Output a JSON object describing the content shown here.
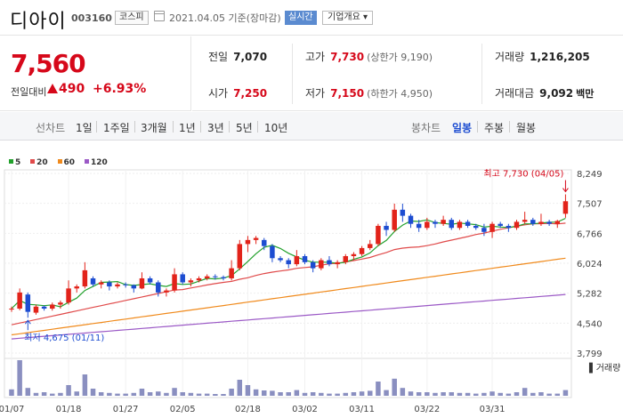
{
  "stock": {
    "name": "디아이",
    "code": "003160",
    "market": "코스피",
    "date_text": "2021.04.05 기준(장마감)",
    "realtime_label": "실시간",
    "company_label": "기업개요 ▾"
  },
  "price": {
    "current": "7,560",
    "change_label": "전일대비",
    "change": "490",
    "change_pct": "+6.93%"
  },
  "stats": {
    "prev_label": "전일",
    "prev": "7,070",
    "high_label": "고가",
    "high": "7,730",
    "upper_limit": "(상한가 9,190)",
    "volume_label": "거래량",
    "volume": "1,216,205",
    "open_label": "시가",
    "open": "7,250",
    "low_label": "저가",
    "low": "7,150",
    "lower_limit": "(하한가 4,950)",
    "amount_label": "거래대금",
    "amount": "9,092",
    "amount_unit": "백만"
  },
  "period_bar": {
    "line_label": "선차트",
    "line_periods": [
      "1일",
      "1주일",
      "3개월",
      "1년",
      "3년",
      "5년",
      "10년"
    ],
    "candle_label": "봉차트",
    "candle_periods": [
      "일봉",
      "주봉",
      "월봉"
    ],
    "selected": "일봉"
  },
  "chart_data": {
    "type": "candlestick",
    "legend": [
      {
        "name": "5",
        "color": "#22a12c"
      },
      {
        "name": "20",
        "color": "#e04a4a"
      },
      {
        "name": "60",
        "color": "#f08a1c"
      },
      {
        "name": "120",
        "color": "#9b59c6"
      }
    ],
    "y_ticks": [
      "8,249",
      "7,507",
      "6,766",
      "6,024",
      "5,282",
      "4,540",
      "3,799"
    ],
    "ylim": [
      3799,
      8249
    ],
    "x_ticks": [
      "01/07",
      "01/18",
      "01/27",
      "02/05",
      "02/18",
      "03/02",
      "03/11",
      "03/22",
      "03/31"
    ],
    "high_note": "최고 7,730 (04/05)",
    "low_note": "최저 4,675 (01/11)",
    "volume_label": "거래량",
    "candles": [
      [
        4880,
        4950,
        4820,
        4900
      ],
      [
        4900,
        5400,
        4860,
        5300
      ],
      [
        5250,
        5300,
        4675,
        4820
      ],
      [
        4800,
        5000,
        4750,
        4950
      ],
      [
        4950,
        4980,
        4850,
        4900
      ],
      [
        4900,
        5050,
        4850,
        5000
      ],
      [
        5000,
        5100,
        4900,
        5050
      ],
      [
        5050,
        5600,
        5000,
        5400
      ],
      [
        5400,
        5500,
        5300,
        5450
      ],
      [
        5450,
        6050,
        5400,
        5850
      ],
      [
        5650,
        5700,
        5450,
        5500
      ],
      [
        5500,
        5600,
        5400,
        5550
      ],
      [
        5550,
        5600,
        5350,
        5450
      ],
      [
        5450,
        5550,
        5400,
        5500
      ],
      [
        5500,
        5550,
        5420,
        5480
      ],
      [
        5480,
        5500,
        5300,
        5400
      ],
      [
        5400,
        5800,
        5380,
        5650
      ],
      [
        5650,
        5700,
        5500,
        5550
      ],
      [
        5550,
        5600,
        5200,
        5300
      ],
      [
        5300,
        5400,
        5200,
        5350
      ],
      [
        5350,
        5900,
        5300,
        5750
      ],
      [
        5750,
        5800,
        5500,
        5550
      ],
      [
        5550,
        5650,
        5450,
        5600
      ],
      [
        5600,
        5700,
        5550,
        5650
      ],
      [
        5650,
        5750,
        5600,
        5700
      ],
      [
        5700,
        5750,
        5620,
        5680
      ],
      [
        5680,
        5720,
        5600,
        5650
      ],
      [
        5650,
        6100,
        5600,
        5900
      ],
      [
        5900,
        6600,
        5850,
        6500
      ],
      [
        6500,
        6700,
        6300,
        6600
      ],
      [
        6600,
        6700,
        6500,
        6650
      ],
      [
        6600,
        6650,
        6350,
        6450
      ],
      [
        6450,
        6500,
        6050,
        6150
      ],
      [
        6150,
        6200,
        6050,
        6100
      ],
      [
        6100,
        6150,
        5900,
        6000
      ],
      [
        6000,
        6350,
        5950,
        6200
      ],
      [
        6200,
        6250,
        6000,
        6050
      ],
      [
        6050,
        6100,
        5800,
        5900
      ],
      [
        5900,
        6150,
        5850,
        6100
      ],
      [
        6100,
        6200,
        5950,
        6000
      ],
      [
        6000,
        6100,
        5900,
        6050
      ],
      [
        6050,
        6250,
        6000,
        6200
      ],
      [
        6200,
        6300,
        6100,
        6250
      ],
      [
        6250,
        6450,
        6200,
        6400
      ],
      [
        6400,
        6600,
        6350,
        6500
      ],
      [
        6500,
        7000,
        6450,
        6950
      ],
      [
        6950,
        7050,
        6700,
        6850
      ],
      [
        6850,
        7500,
        6800,
        7350
      ],
      [
        7350,
        7500,
        7050,
        7200
      ],
      [
        7200,
        7250,
        6900,
        7000
      ],
      [
        7000,
        7100,
        6800,
        6900
      ],
      [
        6900,
        7150,
        6850,
        7050
      ],
      [
        7050,
        7100,
        6900,
        7000
      ],
      [
        7000,
        7200,
        6950,
        7100
      ],
      [
        7100,
        7150,
        6850,
        6900
      ],
      [
        6900,
        7100,
        6850,
        7050
      ],
      [
        7050,
        7100,
        6900,
        6950
      ],
      [
        6950,
        7000,
        6850,
        6900
      ],
      [
        6900,
        7000,
        6700,
        6800
      ],
      [
        6800,
        7050,
        6650,
        7000
      ],
      [
        7000,
        7050,
        6900,
        6950
      ],
      [
        6950,
        7000,
        6800,
        6900
      ],
      [
        6900,
        7100,
        6850,
        7050
      ],
      [
        7050,
        7300,
        7000,
        7100
      ],
      [
        7100,
        7150,
        6950,
        7000
      ],
      [
        7000,
        7250,
        6950,
        7050
      ],
      [
        7050,
        7100,
        6950,
        7000
      ],
      [
        7000,
        7100,
        6900,
        7070
      ],
      [
        7250,
        7730,
        7150,
        7560
      ]
    ],
    "volumes": [
      18,
      100,
      22,
      8,
      10,
      6,
      8,
      30,
      12,
      60,
      20,
      10,
      8,
      6,
      6,
      8,
      20,
      10,
      12,
      8,
      22,
      10,
      8,
      6,
      6,
      5,
      5,
      20,
      45,
      30,
      18,
      15,
      14,
      10,
      10,
      16,
      8,
      10,
      8,
      6,
      6,
      8,
      10,
      12,
      14,
      40,
      16,
      48,
      22,
      12,
      10,
      10,
      8,
      10,
      10,
      8,
      8,
      6,
      8,
      12,
      8,
      6,
      10,
      22,
      8,
      10,
      6,
      6,
      16
    ]
  }
}
